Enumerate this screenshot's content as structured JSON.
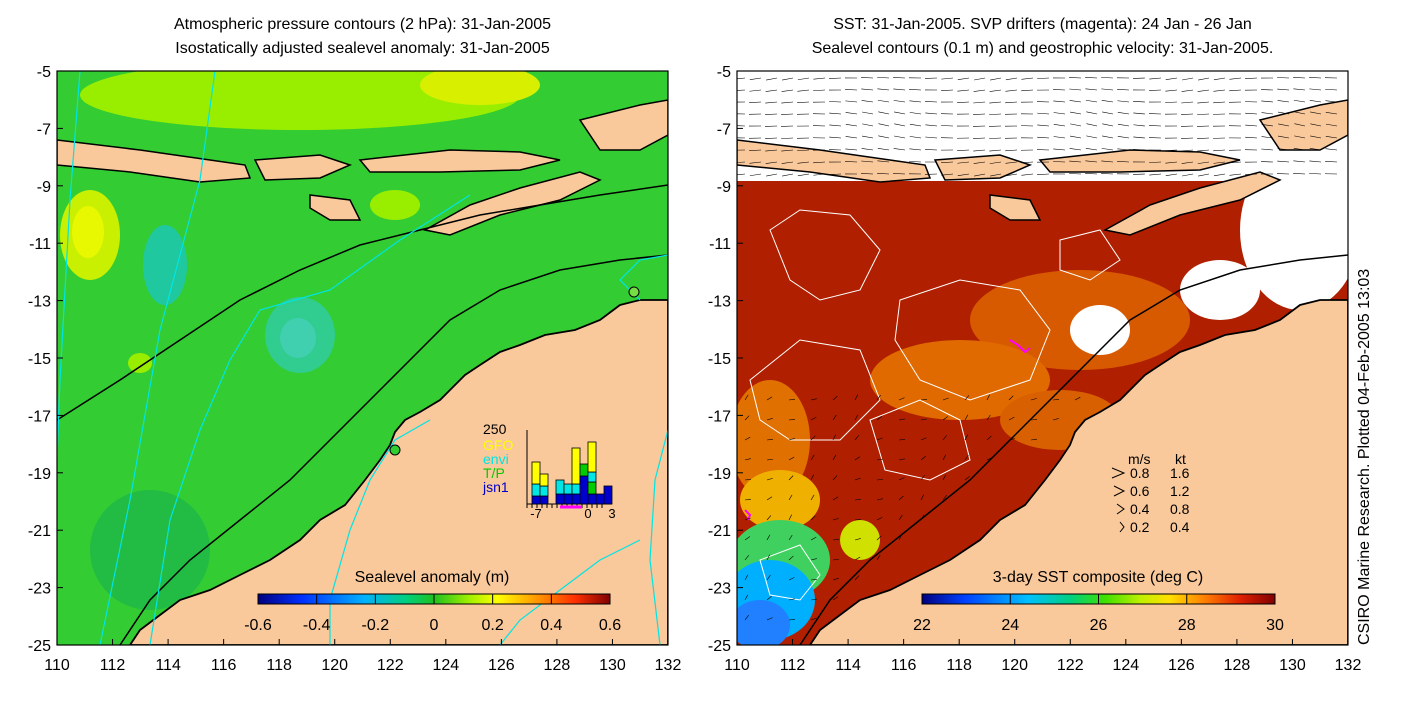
{
  "left_panel": {
    "title_line1": "Atmospheric pressure contours (2 hPa): 31-Jan-2005",
    "title_line2": "Isostatically adjusted sealevel anomaly: 31-Jan-2005",
    "colorbar_label": "Sealevel anomaly (m)",
    "colorbar_ticks": [
      "-0.6",
      "-0.4",
      "-0.2",
      "0",
      "0.2",
      "0.4",
      "0.6"
    ],
    "inset": {
      "ymax_label": "250",
      "legend": [
        {
          "label": "GFO",
          "color": "#ffff00"
        },
        {
          "label": "envi",
          "color": "#00e5e5"
        },
        {
          "label": "T/P",
          "color": "#00cc00"
        },
        {
          "label": "jsn1",
          "color": "#0000cc"
        }
      ],
      "x_ticks": [
        "-7",
        "0",
        "3"
      ]
    }
  },
  "right_panel": {
    "title_line1": "SST: 31-Jan-2005. SVP drifters (magenta): 24 Jan - 26 Jan",
    "title_line2": "Sealevel contours (0.1 m) and geostrophic velocity: 31-Jan-2005.",
    "colorbar_label": "3-day SST composite (deg C)",
    "colorbar_ticks": [
      "22",
      "24",
      "26",
      "28",
      "30"
    ],
    "velocity_legend": {
      "header_ms": "m/s",
      "header_kt": "kt",
      "rows": [
        {
          "ms": "0.8",
          "kt": "1.6"
        },
        {
          "ms": "0.6",
          "kt": "1.2"
        },
        {
          "ms": "0.4",
          "kt": "0.8"
        },
        {
          "ms": "0.2",
          "kt": "0.4"
        }
      ]
    }
  },
  "credit": "CSIRO Marine Research. Plotted 04-Feb-2005 13:03",
  "chart_data": [
    {
      "type": "heatmap",
      "title": "Atmospheric pressure contours (2 hPa): 31-Jan-2005 / Isostatically adjusted sealevel anomaly: 31-Jan-2005",
      "x_ticks": [
        110,
        112,
        114,
        116,
        118,
        120,
        122,
        124,
        126,
        128,
        130,
        132
      ],
      "y_ticks": [
        -5,
        -7,
        -9,
        -11,
        -13,
        -15,
        -17,
        -19,
        -21,
        -23,
        -25
      ],
      "xlim": [
        110,
        132
      ],
      "ylim": [
        -25,
        -5
      ],
      "colorbar": {
        "label": "Sealevel anomaly (m)",
        "range": [
          -0.6,
          0.6
        ]
      },
      "inset_bar": {
        "x_ticks": [
          -7,
          0,
          3
        ],
        "ymax": 250,
        "series": [
          "GFO",
          "envi",
          "T/P",
          "jsn1"
        ],
        "colors": {
          "GFO": "#ffff00",
          "envi": "#00e5e5",
          "T/P": "#00cc00",
          "jsn1": "#0000cc"
        }
      }
    },
    {
      "type": "heatmap",
      "title": "SST: 31-Jan-2005. SVP drifters (magenta): 24 Jan - 26 Jan / Sealevel contours (0.1 m) and geostrophic velocity: 31-Jan-2005.",
      "x_ticks": [
        110,
        112,
        114,
        116,
        118,
        120,
        122,
        124,
        126,
        128,
        130,
        132
      ],
      "y_ticks": [
        -5,
        -7,
        -9,
        -11,
        -13,
        -15,
        -17,
        -19,
        -21,
        -23,
        -25
      ],
      "xlim": [
        110,
        132
      ],
      "ylim": [
        -25,
        -5
      ],
      "colorbar": {
        "label": "3-day SST composite (deg C)",
        "range": [
          22,
          30
        ]
      },
      "velocity_scale": [
        {
          "ms": 0.8,
          "kt": 1.6
        },
        {
          "ms": 0.6,
          "kt": 1.2
        },
        {
          "ms": 0.4,
          "kt": 0.8
        },
        {
          "ms": 0.2,
          "kt": 0.4
        }
      ]
    }
  ]
}
